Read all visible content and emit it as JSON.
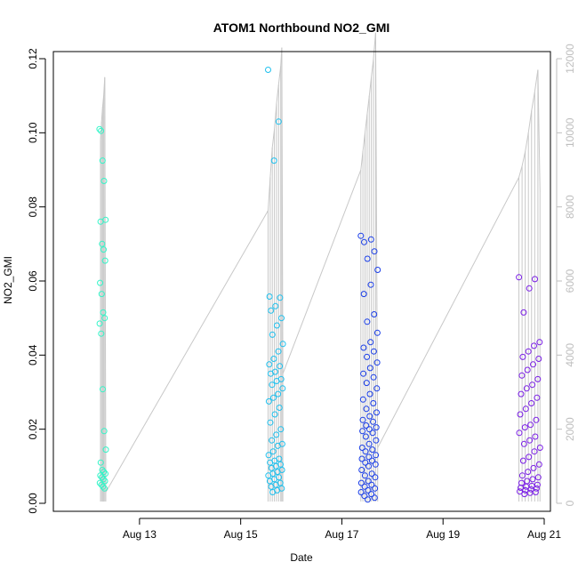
{
  "chart_data": {
    "type": "scatter",
    "title": "ATOM1 Northbound NO2_GMI",
    "xlabel": "Date",
    "ylabel": "NO2_GMI",
    "ylim": [
      0,
      0.12
    ],
    "xlim": [
      "2016-08-12",
      "2016-08-21"
    ],
    "x_ticks": [
      "Aug 13",
      "Aug 15",
      "Aug 17",
      "Aug 19",
      "Aug 21"
    ],
    "y_ticks": [
      "0.00",
      "0.02",
      "0.04",
      "0.06",
      "0.08",
      "0.10",
      "0.12"
    ],
    "y2_ticks": [
      "0",
      "2000",
      "4000",
      "6000",
      "8000",
      "10000",
      "12000"
    ],
    "y2lim": [
      0,
      12000
    ],
    "y2_color": "#bebebe",
    "secondary_line_color": "#c8c8c8",
    "marker": "open-circle",
    "groups": [
      {
        "date": "Aug 12",
        "color": "#33f5c8",
        "x_range": [
          "2016-08-12 05:00",
          "2016-08-12 08:00"
        ],
        "values": [
          0.101,
          0.1005,
          0.0925,
          0.087,
          0.0765,
          0.076,
          0.07,
          0.0685,
          0.0655,
          0.0595,
          0.0565,
          0.0515,
          0.05,
          0.0485,
          0.0458,
          0.0308,
          0.0195,
          0.0145,
          0.011,
          0.009,
          0.0085,
          0.008,
          0.0075,
          0.007,
          0.0065,
          0.006,
          0.0055,
          0.005,
          0.0045,
          0.004
        ]
      },
      {
        "date": "Aug 15",
        "color": "#1ec0ee",
        "x_range": [
          "2016-08-15 13:00",
          "2016-08-15 20:00"
        ],
        "values": [
          0.117,
          0.103,
          0.0925,
          0.0558,
          0.0555,
          0.0532,
          0.052,
          0.05,
          0.048,
          0.0455,
          0.043,
          0.041,
          0.039,
          0.0375,
          0.037,
          0.0355,
          0.035,
          0.0335,
          0.033,
          0.032,
          0.031,
          0.0295,
          0.0285,
          0.0275,
          0.0258,
          0.024,
          0.0218,
          0.02,
          0.0185,
          0.017,
          0.016,
          0.0155,
          0.014,
          0.013,
          0.012,
          0.0115,
          0.011,
          0.0105,
          0.01,
          0.0095,
          0.009,
          0.0085,
          0.008,
          0.0075,
          0.007,
          0.0065,
          0.006,
          0.0055,
          0.005,
          0.0045,
          0.004,
          0.0035,
          0.003
        ]
      },
      {
        "date": "Aug 17",
        "color": "#1a3ee8",
        "x_range": [
          "2016-08-17 09:00",
          "2016-08-17 17:00"
        ],
        "values": [
          0.0722,
          0.0712,
          0.0705,
          0.068,
          0.066,
          0.063,
          0.059,
          0.0565,
          0.051,
          0.049,
          0.046,
          0.0435,
          0.042,
          0.041,
          0.0395,
          0.038,
          0.0365,
          0.035,
          0.034,
          0.0325,
          0.031,
          0.0295,
          0.028,
          0.027,
          0.0255,
          0.0245,
          0.0235,
          0.0225,
          0.022,
          0.021,
          0.0205,
          0.02,
          0.0195,
          0.019,
          0.018,
          0.017,
          0.016,
          0.015,
          0.0145,
          0.014,
          0.013,
          0.0125,
          0.012,
          0.0115,
          0.011,
          0.0105,
          0.01,
          0.009,
          0.008,
          0.0075,
          0.007,
          0.006,
          0.0055,
          0.005,
          0.0045,
          0.004,
          0.0035,
          0.003,
          0.0025,
          0.002,
          0.0015,
          0.001
        ]
      },
      {
        "date": "Aug 20",
        "color": "#7a1ee6",
        "x_range": [
          "2016-08-20 12:00",
          "2016-08-20 22:00"
        ],
        "values": [
          0.061,
          0.0605,
          0.058,
          0.0515,
          0.0435,
          0.0425,
          0.041,
          0.0395,
          0.039,
          0.0375,
          0.036,
          0.0345,
          0.0335,
          0.032,
          0.031,
          0.0295,
          0.0285,
          0.027,
          0.0255,
          0.024,
          0.0225,
          0.0212,
          0.0205,
          0.019,
          0.018,
          0.017,
          0.016,
          0.015,
          0.014,
          0.0125,
          0.0115,
          0.0105,
          0.0095,
          0.0085,
          0.0075,
          0.007,
          0.0065,
          0.006,
          0.0055,
          0.005,
          0.0047,
          0.0045,
          0.0042,
          0.004,
          0.0038,
          0.0035,
          0.0032,
          0.003,
          0.0028,
          0.0025
        ]
      }
    ],
    "secondary_series": [
      {
        "x": "2016-08-12 05:30",
        "value": 9800
      },
      {
        "x": "2016-08-12 06:00",
        "value": 10300
      },
      {
        "x": "2016-08-12 06:30",
        "value": 10700
      },
      {
        "x": "2016-08-12 07:00",
        "value": 11000
      },
      {
        "x": "2016-08-12 07:30",
        "value": 11500
      },
      {
        "x": "2016-08-12 08:00",
        "value": 300
      },
      {
        "x": "2016-08-15 13:00",
        "value": 7900
      },
      {
        "x": "2016-08-15 14:00",
        "value": 8800
      },
      {
        "x": "2016-08-15 15:00",
        "value": 9600
      },
      {
        "x": "2016-08-15 16:00",
        "value": 10100
      },
      {
        "x": "2016-08-15 17:00",
        "value": 10800
      },
      {
        "x": "2016-08-15 18:00",
        "value": 11300
      },
      {
        "x": "2016-08-15 19:00",
        "value": 11800
      },
      {
        "x": "2016-08-15 19:30",
        "value": 12300
      },
      {
        "x": "2016-08-15 20:00",
        "value": 3500
      },
      {
        "x": "2016-08-17 09:00",
        "value": 9000
      },
      {
        "x": "2016-08-17 10:00",
        "value": 9500
      },
      {
        "x": "2016-08-17 11:00",
        "value": 10000
      },
      {
        "x": "2016-08-17 12:00",
        "value": 10500
      },
      {
        "x": "2016-08-17 13:00",
        "value": 11000
      },
      {
        "x": "2016-08-17 14:00",
        "value": 11500
      },
      {
        "x": "2016-08-17 15:00",
        "value": 12000
      },
      {
        "x": "2016-08-17 16:00",
        "value": 12700
      },
      {
        "x": "2016-08-17 17:00",
        "value": 1500
      },
      {
        "x": "2016-08-20 12:00",
        "value": 8800
      },
      {
        "x": "2016-08-20 13:30",
        "value": 9100
      },
      {
        "x": "2016-08-20 15:00",
        "value": 9500
      },
      {
        "x": "2016-08-20 16:30",
        "value": 10000
      },
      {
        "x": "2016-08-20 18:00",
        "value": 10600
      },
      {
        "x": "2016-08-20 19:30",
        "value": 11100
      },
      {
        "x": "2016-08-20 21:00",
        "value": 11700
      },
      {
        "x": "2016-08-20 22:00",
        "value": 8400
      }
    ]
  }
}
